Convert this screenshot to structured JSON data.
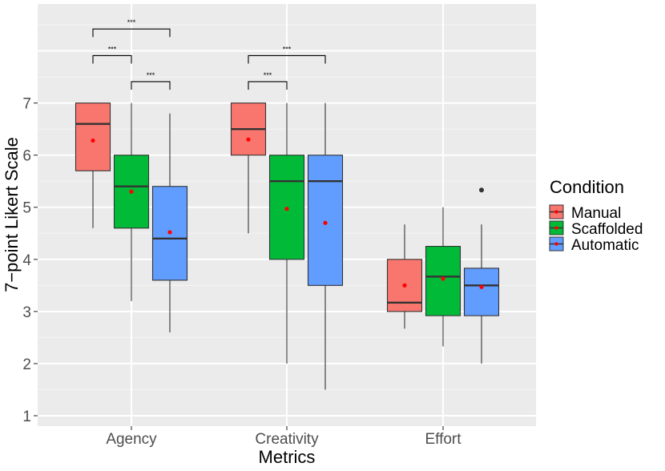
{
  "chart_data": {
    "type": "boxplot",
    "xlabel": "Metrics",
    "ylabel": "7−point Likert Scale",
    "ylim": [
      0.8,
      8.9
    ],
    "yticks": [
      1,
      2,
      3,
      4,
      5,
      6,
      7
    ],
    "grid": true,
    "categories": [
      "Agency",
      "Creativity",
      "Effort"
    ],
    "legend": {
      "title": "Condition",
      "position": "right",
      "entries": [
        {
          "name": "Manual",
          "color": "#F8766D"
        },
        {
          "name": "Scaffolded",
          "color": "#00BA38"
        },
        {
          "name": "Automatic",
          "color": "#619CFF"
        }
      ]
    },
    "series": [
      {
        "name": "Manual",
        "color": "#F8766D",
        "boxes": [
          {
            "category": "Agency",
            "whisker_low": 4.6,
            "q1": 5.7,
            "median": 6.6,
            "q3": 7.0,
            "whisker_high": 7.0,
            "mean": 6.28,
            "outliers": []
          },
          {
            "category": "Creativity",
            "whisker_low": 4.5,
            "q1": 6.0,
            "median": 6.5,
            "q3": 7.0,
            "whisker_high": 7.0,
            "mean": 6.3,
            "outliers": []
          },
          {
            "category": "Effort",
            "whisker_low": 2.67,
            "q1": 3.0,
            "median": 3.17,
            "q3": 4.0,
            "whisker_high": 4.67,
            "mean": 3.5,
            "outliers": []
          }
        ]
      },
      {
        "name": "Scaffolded",
        "color": "#00BA38",
        "boxes": [
          {
            "category": "Agency",
            "whisker_low": 3.2,
            "q1": 4.6,
            "median": 5.4,
            "q3": 6.0,
            "whisker_high": 7.0,
            "mean": 5.3,
            "outliers": []
          },
          {
            "category": "Creativity",
            "whisker_low": 2.0,
            "q1": 4.0,
            "median": 5.5,
            "q3": 6.0,
            "whisker_high": 7.0,
            "mean": 4.97,
            "outliers": []
          },
          {
            "category": "Effort",
            "whisker_low": 2.33,
            "q1": 2.92,
            "median": 3.67,
            "q3": 4.25,
            "whisker_high": 5.0,
            "mean": 3.63,
            "outliers": []
          }
        ]
      },
      {
        "name": "Automatic",
        "color": "#619CFF",
        "boxes": [
          {
            "category": "Agency",
            "whisker_low": 2.6,
            "q1": 3.6,
            "median": 4.4,
            "q3": 5.4,
            "whisker_high": 6.8,
            "mean": 4.52,
            "outliers": []
          },
          {
            "category": "Creativity",
            "whisker_low": 1.5,
            "q1": 3.5,
            "median": 5.5,
            "q3": 6.0,
            "whisker_high": 7.0,
            "mean": 4.7,
            "outliers": []
          },
          {
            "category": "Effort",
            "whisker_low": 2.0,
            "q1": 2.92,
            "median": 3.5,
            "q3": 3.83,
            "whisker_high": 4.67,
            "mean": 3.47,
            "outliers": [
              5.33
            ]
          }
        ]
      }
    ],
    "significance": [
      {
        "category": "Agency",
        "from": "Manual",
        "to": "Automatic",
        "label": "***",
        "level": 8.42
      },
      {
        "category": "Agency",
        "from": "Manual",
        "to": "Scaffolded",
        "label": "***",
        "level": 7.91
      },
      {
        "category": "Agency",
        "from": "Scaffolded",
        "to": "Automatic",
        "label": "***",
        "level": 7.41
      },
      {
        "category": "Creativity",
        "from": "Manual",
        "to": "Automatic",
        "label": "***",
        "level": 7.91
      },
      {
        "category": "Creativity",
        "from": "Manual",
        "to": "Scaffolded",
        "label": "***",
        "level": 7.41
      }
    ]
  }
}
